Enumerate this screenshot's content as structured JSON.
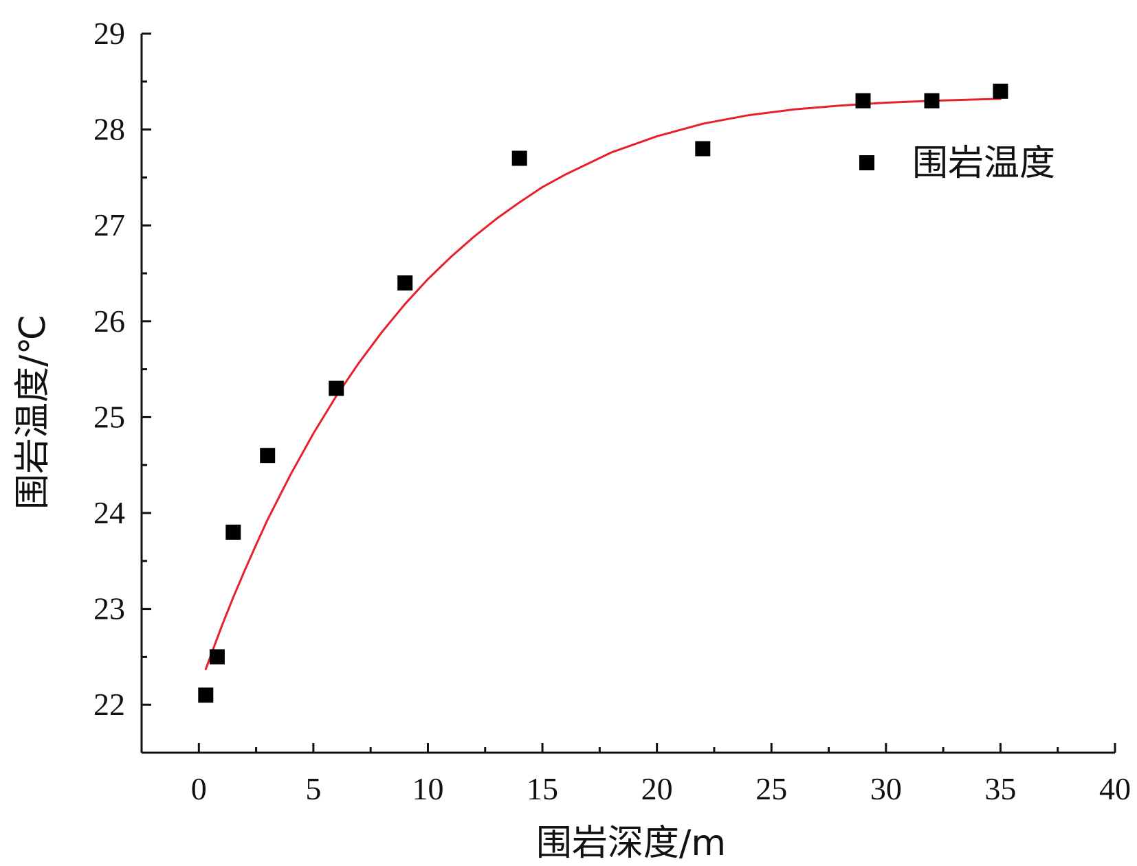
{
  "chart_data": {
    "type": "scatter",
    "xlabel": "围岩深度/m",
    "ylabel": "围岩温度/℃",
    "xlim": [
      -2.5,
      40
    ],
    "ylim": [
      21.5,
      29
    ],
    "x_ticks": [
      0,
      5,
      10,
      15,
      20,
      25,
      30,
      35,
      40
    ],
    "y_ticks": [
      22,
      23,
      24,
      25,
      26,
      27,
      28,
      29
    ],
    "legend_position": "top-right",
    "grid": false,
    "series": [
      {
        "name": "围岩温度",
        "type": "scatter",
        "color": "#000000",
        "x": [
          0.3,
          0.8,
          1.5,
          3,
          6,
          9,
          14,
          22,
          29,
          32,
          35
        ],
        "y": [
          22.1,
          22.5,
          23.8,
          24.6,
          25.3,
          26.4,
          27.7,
          27.8,
          28.3,
          28.3,
          28.4
        ]
      },
      {
        "type": "line",
        "color": "#e8202a",
        "x": [
          0.3,
          0.7,
          1.0,
          1.5,
          2.0,
          2.5,
          3.0,
          4.0,
          5.0,
          6.0,
          7.0,
          8.0,
          9.0,
          10.0,
          11.0,
          12.0,
          13.0,
          14.0,
          15.0,
          16.0,
          18.0,
          20.0,
          22.0,
          24.0,
          26.0,
          28.0,
          30.0,
          32.0,
          35.0
        ],
        "y": [
          22.37,
          22.63,
          22.82,
          23.12,
          23.4,
          23.67,
          23.93,
          24.4,
          24.83,
          25.22,
          25.57,
          25.89,
          26.18,
          26.44,
          26.67,
          26.88,
          27.07,
          27.24,
          27.4,
          27.53,
          27.76,
          27.93,
          28.06,
          28.15,
          28.21,
          28.25,
          28.28,
          28.3,
          28.32
        ]
      }
    ]
  }
}
